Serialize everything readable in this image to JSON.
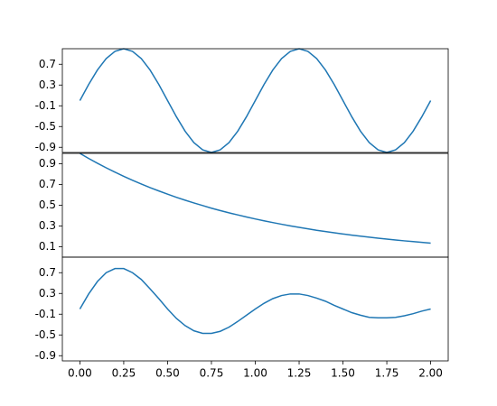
{
  "chart_data": [
    {
      "type": "line",
      "color": "#1f77b4",
      "x": [
        0,
        0.05,
        0.1,
        0.15,
        0.2,
        0.25,
        0.3,
        0.35,
        0.4,
        0.45,
        0.5,
        0.55,
        0.6,
        0.65,
        0.7,
        0.75,
        0.8,
        0.85,
        0.9,
        0.95,
        1,
        1.05,
        1.1,
        1.15,
        1.2,
        1.25,
        1.3,
        1.35,
        1.4,
        1.45,
        1.5,
        1.55,
        1.6,
        1.65,
        1.7,
        1.75,
        1.8,
        1.85,
        1.9,
        1.95,
        2
      ],
      "values": [
        0,
        0.31,
        0.59,
        0.81,
        0.95,
        1,
        0.95,
        0.81,
        0.59,
        0.31,
        0,
        -0.31,
        -0.59,
        -0.81,
        -0.95,
        -1,
        -0.95,
        -0.81,
        -0.59,
        -0.31,
        0,
        0.31,
        0.59,
        0.81,
        0.95,
        1,
        0.95,
        0.81,
        0.59,
        0.31,
        0,
        -0.31,
        -0.59,
        -0.81,
        -0.95,
        -1,
        -0.95,
        -0.81,
        -0.59,
        -0.31,
        0
      ],
      "xlim": [
        -0.1,
        2.1
      ],
      "ylim": [
        -1,
        1
      ],
      "yticks": [
        -0.9,
        -0.5,
        -0.1,
        0.3,
        0.7
      ]
    },
    {
      "type": "line",
      "color": "#1f77b4",
      "x": [
        0,
        0.05,
        0.1,
        0.15,
        0.2,
        0.25,
        0.3,
        0.35,
        0.4,
        0.45,
        0.5,
        0.55,
        0.6,
        0.65,
        0.7,
        0.75,
        0.8,
        0.85,
        0.9,
        0.95,
        1,
        1.05,
        1.1,
        1.15,
        1.2,
        1.25,
        1.3,
        1.35,
        1.4,
        1.45,
        1.5,
        1.55,
        1.6,
        1.65,
        1.7,
        1.75,
        1.8,
        1.85,
        1.9,
        1.95,
        2
      ],
      "values": [
        1,
        0.951,
        0.905,
        0.861,
        0.819,
        0.779,
        0.741,
        0.705,
        0.67,
        0.638,
        0.607,
        0.577,
        0.549,
        0.522,
        0.497,
        0.472,
        0.449,
        0.427,
        0.407,
        0.387,
        0.368,
        0.35,
        0.333,
        0.317,
        0.301,
        0.287,
        0.273,
        0.259,
        0.247,
        0.235,
        0.223,
        0.212,
        0.202,
        0.192,
        0.183,
        0.174,
        0.165,
        0.157,
        0.15,
        0.142,
        0.135
      ],
      "xlim": [
        -0.1,
        2.1
      ],
      "ylim": [
        0,
        1
      ],
      "yticks": [
        0.1,
        0.3,
        0.5,
        0.7,
        0.9
      ]
    },
    {
      "type": "line",
      "color": "#1f77b4",
      "x": [
        0,
        0.05,
        0.1,
        0.15,
        0.2,
        0.25,
        0.3,
        0.35,
        0.4,
        0.45,
        0.5,
        0.55,
        0.6,
        0.65,
        0.7,
        0.75,
        0.8,
        0.85,
        0.9,
        0.95,
        1,
        1.05,
        1.1,
        1.15,
        1.2,
        1.25,
        1.3,
        1.35,
        1.4,
        1.45,
        1.5,
        1.55,
        1.6,
        1.65,
        1.7,
        1.75,
        1.8,
        1.85,
        1.9,
        1.95,
        2
      ],
      "values": [
        0,
        0.29,
        0.53,
        0.7,
        0.78,
        0.78,
        0.7,
        0.57,
        0.39,
        0.2,
        0,
        -0.18,
        -0.32,
        -0.42,
        -0.47,
        -0.47,
        -0.43,
        -0.35,
        -0.24,
        -0.12,
        0,
        0.11,
        0.2,
        0.26,
        0.29,
        0.29,
        0.26,
        0.21,
        0.15,
        0.07,
        0,
        -0.07,
        -0.12,
        -0.16,
        -0.17,
        -0.17,
        -0.16,
        -0.13,
        -0.09,
        -0.04,
        0
      ],
      "xlim": [
        -0.1,
        2.1
      ],
      "ylim": [
        -1,
        1
      ],
      "yticks": [
        -0.9,
        -0.5,
        -0.1,
        0.3,
        0.7
      ],
      "xticks": [
        {
          "value": 0,
          "label": "0.00"
        },
        {
          "value": 0.25,
          "label": "0.25"
        },
        {
          "value": 0.5,
          "label": "0.50"
        },
        {
          "value": 0.75,
          "label": "0.75"
        },
        {
          "value": 1,
          "label": "1.00"
        },
        {
          "value": 1.25,
          "label": "1.25"
        },
        {
          "value": 1.5,
          "label": "1.50"
        },
        {
          "value": 1.75,
          "label": "1.75"
        },
        {
          "value": 2,
          "label": "2.00"
        }
      ]
    }
  ]
}
